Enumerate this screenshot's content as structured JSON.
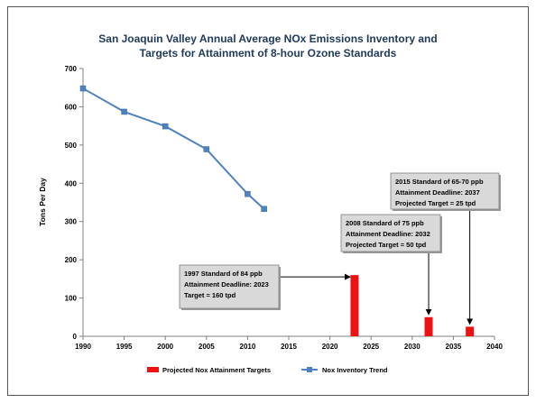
{
  "chart_data": {
    "type": "bar",
    "title": [
      "San Joaquin Valley Annual Average NOx Emissions Inventory and",
      "Targets for Attainment of 8-hour Ozone Standards"
    ],
    "xlabel": "",
    "ylabel": "Tons Per Day",
    "xlim": [
      1990,
      2040
    ],
    "ylim": [
      0,
      700
    ],
    "x_ticks": [
      "1990",
      "1995",
      "2000",
      "2005",
      "2010",
      "2015",
      "2020",
      "2025",
      "2030",
      "2035",
      "2040"
    ],
    "y_ticks": [
      "0",
      "100",
      "200",
      "300",
      "400",
      "500",
      "600",
      "700"
    ],
    "grid": false,
    "legend_position": "bottom",
    "series": [
      {
        "name": "Projected Nox Attainment Targets",
        "type": "bar",
        "color": "#ee1111",
        "x": [
          2023,
          2032,
          2037
        ],
        "values": [
          160,
          50,
          25
        ]
      },
      {
        "name": "Nox Inventory Trend",
        "type": "line",
        "color": "#4f81bd",
        "x": [
          1990,
          1995,
          2000,
          2005,
          2010,
          2012
        ],
        "values": [
          648,
          587,
          549,
          489,
          372,
          333
        ]
      }
    ],
    "annotations": [
      {
        "lines": [
          "1997 Standard of 84 ppb",
          "Attainment Deadline: 2023",
          "Target = 160 tpd"
        ],
        "target_x": 2023,
        "target_y": 160
      },
      {
        "lines": [
          "2008 Standard of 75 ppb",
          "Attainment Deadline: 2032",
          "Projected Target = 50 tpd"
        ],
        "target_x": 2032,
        "target_y": 50
      },
      {
        "lines": [
          "2015 Standard of 65-70 ppb",
          "Attainment Deadline: 2037",
          "Projected Target = 25 tpd"
        ],
        "target_x": 2037,
        "target_y": 25
      }
    ]
  }
}
